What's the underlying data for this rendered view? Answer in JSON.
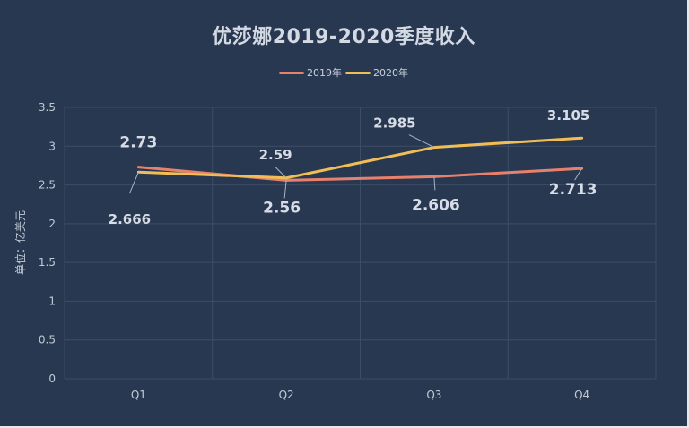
{
  "chart": {
    "title": "优莎娜2019-2020季度收入",
    "ylabel": "单位：亿美元",
    "legend": [
      {
        "label": "2019年",
        "color": "#e8806e"
      },
      {
        "label": "2020年",
        "color": "#f0be55"
      }
    ]
  },
  "chart_data": {
    "type": "line",
    "title": "优莎娜2019-2020季度收入",
    "xlabel": "",
    "ylabel": "单位：亿美元",
    "categories": [
      "Q1",
      "Q2",
      "Q3",
      "Q4"
    ],
    "series": [
      {
        "name": "2019年",
        "color": "#e8806e",
        "values": [
          2.73,
          2.56,
          2.606,
          2.713
        ]
      },
      {
        "name": "2020年",
        "color": "#f0be55",
        "values": [
          2.666,
          2.59,
          2.985,
          3.105
        ]
      }
    ],
    "ylim": [
      0,
      3.5
    ],
    "yticks": [
      "0",
      "0.5",
      "1",
      "1.5",
      "2",
      "2.5",
      "3",
      "3.5"
    ],
    "grid": true,
    "legend_position": "top"
  }
}
